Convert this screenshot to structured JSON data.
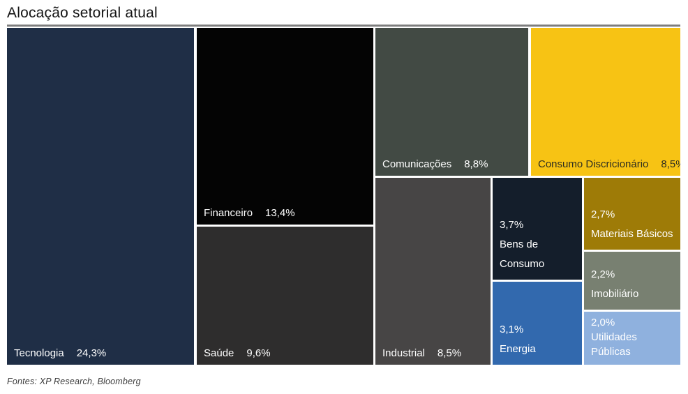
{
  "title": "Alocação setorial atual",
  "source_note": "Fontes: XP Research, Bloomberg",
  "chart_data": {
    "type": "treemap",
    "title": "Alocação setorial atual",
    "value_unit": "%",
    "value_format": "pt-BR comma decimal",
    "legend": "none",
    "sectors": [
      {
        "name": "Tecnologia",
        "value": 24.3,
        "value_label": "24,3%",
        "color": "#1f2e46",
        "text_color": "#ffffff"
      },
      {
        "name": "Financeiro",
        "value": 13.4,
        "value_label": "13,4%",
        "color": "#040404",
        "text_color": "#ffffff"
      },
      {
        "name": "Saúde",
        "value": 9.6,
        "value_label": "9,6%",
        "color": "#2e2d2d",
        "text_color": "#ffffff"
      },
      {
        "name": "Comunicações",
        "value": 8.8,
        "value_label": "8,8%",
        "color": "#424a44",
        "text_color": "#ffffff"
      },
      {
        "name": "Consumo Discricionário",
        "value": 8.5,
        "value_label": "8,5%",
        "color": "#f7c314",
        "text_color": "#2e2e20"
      },
      {
        "name": "Industrial",
        "value": 8.5,
        "value_label": "8,5%",
        "color": "#474545",
        "text_color": "#ffffff"
      },
      {
        "name": "Bens de Consumo",
        "value": 3.7,
        "value_label": "3,7%",
        "color": "#141e2b",
        "text_color": "#ffffff"
      },
      {
        "name": "Energia",
        "value": 3.1,
        "value_label": "3,1%",
        "color": "#3269ae",
        "text_color": "#ffffff"
      },
      {
        "name": "Materiais Básicos",
        "value": 2.7,
        "value_label": "2,7%",
        "color": "#9e7b07",
        "text_color": "#ffffff"
      },
      {
        "name": "Imobiliário",
        "value": 2.2,
        "value_label": "2,2%",
        "color": "#788071",
        "text_color": "#ffffff"
      },
      {
        "name": "Utilidades Públicas",
        "name_display": "Utilidades\n Públicas",
        "value": 2.0,
        "value_label": "2,0%",
        "color": "#8fb1de",
        "text_color": "#ffffff"
      }
    ]
  }
}
